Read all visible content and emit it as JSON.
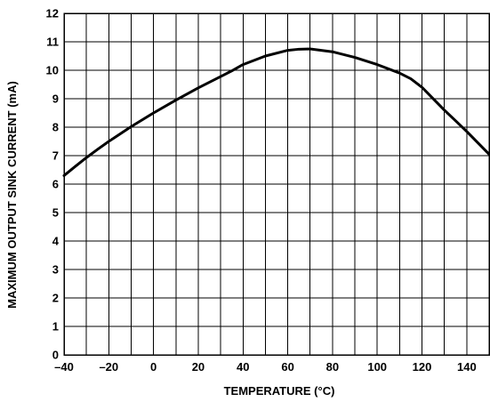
{
  "chart_data": {
    "type": "line",
    "title": "",
    "xlabel": "TEMPERATURE (°C)",
    "ylabel": "MAXIMUM OUTPUT SINK CURRENT (mA)",
    "xlim": [
      -40,
      150
    ],
    "ylim": [
      0,
      12
    ],
    "x_ticks": [
      -40,
      -20,
      0,
      20,
      40,
      60,
      80,
      100,
      120,
      140
    ],
    "x_tick_labels": [
      "–40",
      "–20",
      "0",
      "20",
      "40",
      "60",
      "80",
      "100",
      "120",
      "140"
    ],
    "y_ticks": [
      0,
      1,
      2,
      3,
      4,
      5,
      6,
      7,
      8,
      9,
      10,
      11,
      12
    ],
    "y_tick_labels": [
      "0",
      "1",
      "2",
      "3",
      "4",
      "5",
      "6",
      "7",
      "8",
      "9",
      "10",
      "11",
      "12"
    ],
    "grid": true,
    "x_grid_step": 10,
    "y_grid_step": 1,
    "series": [
      {
        "color": "#000000",
        "x": [
          -40,
          -35,
          -30,
          -25,
          -20,
          -10,
          0,
          10,
          20,
          30,
          35,
          40,
          50,
          60,
          65,
          70,
          80,
          90,
          100,
          110,
          115,
          120,
          130,
          140,
          150
        ],
        "y": [
          6.3,
          6.62,
          6.93,
          7.22,
          7.5,
          8.02,
          8.5,
          8.95,
          9.38,
          9.78,
          9.98,
          10.2,
          10.5,
          10.7,
          10.74,
          10.75,
          10.65,
          10.45,
          10.2,
          9.9,
          9.7,
          9.4,
          8.6,
          7.85,
          7.05
        ]
      }
    ]
  }
}
